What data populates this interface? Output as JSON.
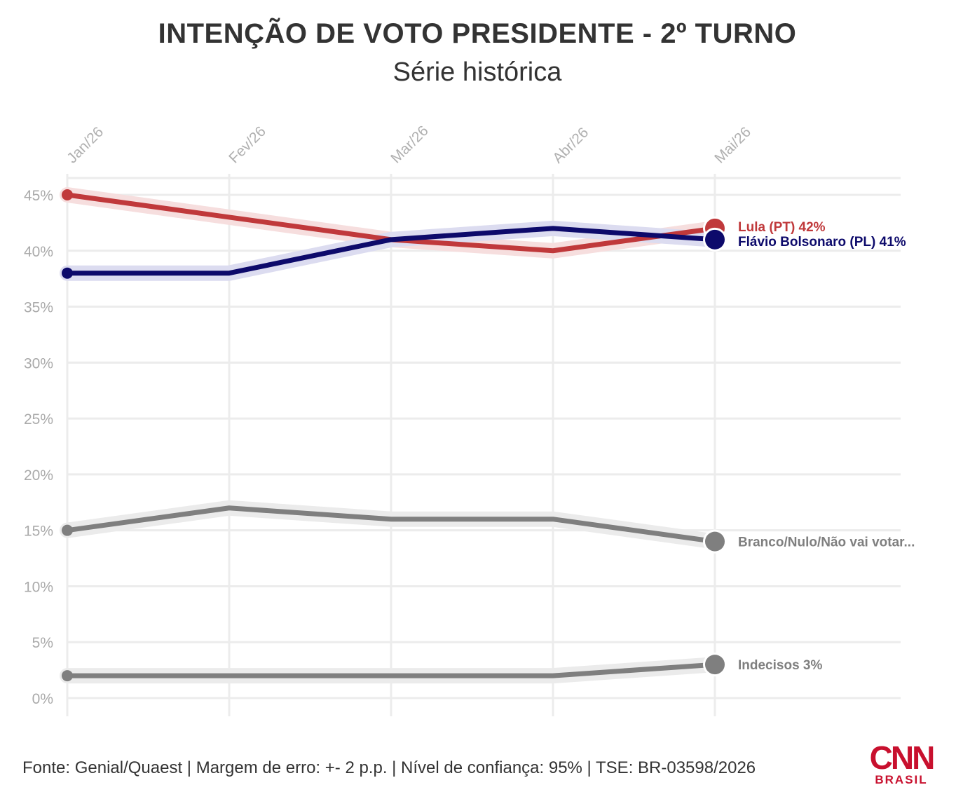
{
  "title": "INTENÇÃO DE VOTO PRESIDENTE - 2º TURNO",
  "subtitle": "Série histórica",
  "footer": "Fonte: Genial/Quaest | Margem de erro: +- 2 p.p. | Nível de confiança: 95% | TSE: BR-03598/2026",
  "logo": {
    "main": "CNN",
    "sub": "BRASIL"
  },
  "chart_data": {
    "type": "line",
    "categories": [
      "Jan/26",
      "Fev/26",
      "Mar/26",
      "Abr/26",
      "Mai/26"
    ],
    "ylim": [
      0,
      45
    ],
    "yticks": [
      0,
      5,
      10,
      15,
      20,
      25,
      30,
      35,
      40,
      45
    ],
    "ytick_labels": [
      "0%",
      "5%",
      "10%",
      "15%",
      "20%",
      "25%",
      "30%",
      "35%",
      "40%",
      "45%"
    ],
    "grid": true,
    "error_band": 0.6,
    "series": [
      {
        "name": "Lula (PT) 42%",
        "color": "#c0393b",
        "band": "#f6dede",
        "values": [
          45,
          43,
          41,
          40,
          42
        ]
      },
      {
        "name": "Flávio Bolsonaro (PL) 41%",
        "color": "#0d0a6b",
        "band": "#dcdcf0",
        "values": [
          38,
          38,
          41,
          42,
          41
        ]
      },
      {
        "name": "Branco/Nulo/Não vai votar...",
        "color": "#7f7f7f",
        "band": "#ebebeb",
        "values": [
          15,
          17,
          16,
          16,
          14
        ]
      },
      {
        "name": "Indecisos 3%",
        "color": "#7f7f7f",
        "band": "#ebebeb",
        "values": [
          2,
          2,
          2,
          2,
          3
        ]
      }
    ]
  }
}
